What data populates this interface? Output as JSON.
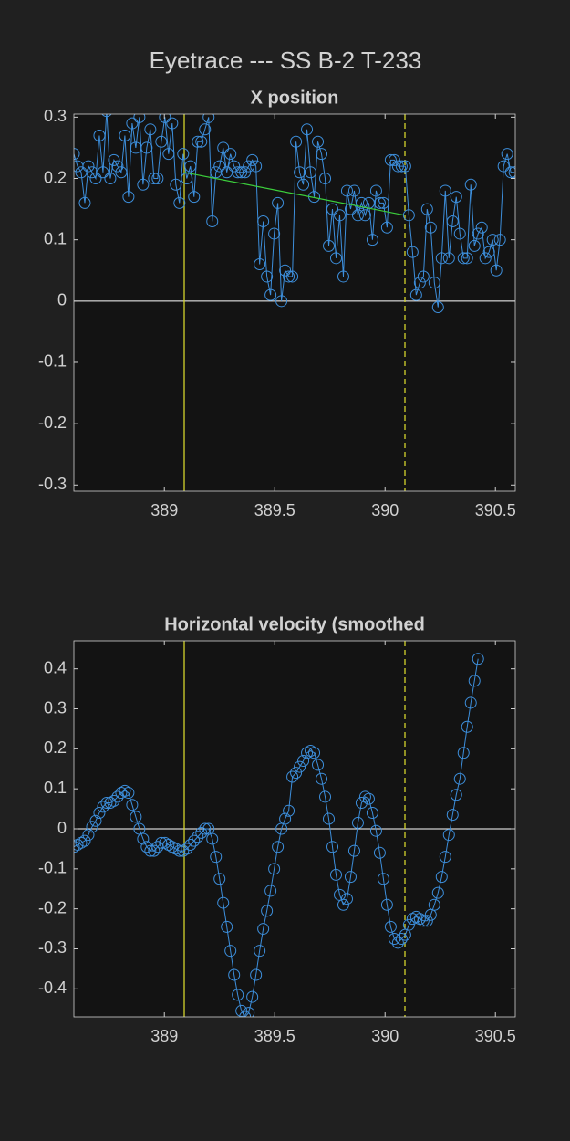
{
  "title": "Eyetrace --- SS B-2 T-233",
  "chart_data": [
    {
      "type": "line",
      "title": "X position",
      "x": [
        388.59,
        388.6065,
        388.623,
        388.6395,
        388.656,
        388.6725,
        388.689,
        388.7055,
        388.722,
        388.7385,
        388.755,
        388.7715,
        388.788,
        388.8045,
        388.821,
        388.8375,
        388.854,
        388.8705,
        388.887,
        388.9035,
        388.92,
        388.9365,
        388.953,
        388.9695,
        388.986,
        389.0025,
        389.019,
        389.0355,
        389.052,
        389.0685,
        389.085,
        389.1015,
        389.118,
        389.1345,
        389.151,
        389.1675,
        389.184,
        389.2005,
        389.217,
        389.2335,
        389.25,
        389.2665,
        389.283,
        389.2995,
        389.316,
        389.3325,
        389.349,
        389.3655,
        389.382,
        389.3985,
        389.415,
        389.4315,
        389.448,
        389.4645,
        389.481,
        389.4975,
        389.514,
        389.5305,
        389.547,
        389.5635,
        389.58,
        389.5965,
        389.613,
        389.6295,
        389.646,
        389.6625,
        389.679,
        389.6955,
        389.712,
        389.7285,
        389.745,
        389.7615,
        389.778,
        389.7945,
        389.811,
        389.8275,
        389.844,
        389.8605,
        389.877,
        389.8935,
        389.91,
        389.9265,
        389.943,
        389.9595,
        389.976,
        389.9925,
        390.009,
        390.0255,
        390.042,
        390.0585,
        390.075,
        390.0915,
        390.108,
        390.1245,
        390.141,
        390.1575,
        390.174,
        390.1905,
        390.207,
        390.2235,
        390.24,
        390.2565,
        390.273,
        390.2895,
        390.306,
        390.3225,
        390.339,
        390.3555,
        390.372,
        390.3885,
        390.405,
        390.4215,
        390.438,
        390.4545,
        390.471,
        390.4875,
        390.504,
        390.5205,
        390.537,
        390.5535,
        390.57,
        390.5865
      ],
      "series": [
        {
          "color": "#3d8fdc",
          "values": [
            0.24,
            0.22,
            0.21,
            0.16,
            0.22,
            0.21,
            0.2,
            0.27,
            0.21,
            0.31,
            0.2,
            0.23,
            0.22,
            0.21,
            0.27,
            0.17,
            0.29,
            0.25,
            0.3,
            0.19,
            0.25,
            0.28,
            0.2,
            0.2,
            0.26,
            0.3,
            0.24,
            0.29,
            0.19,
            0.16,
            0.24,
            0.2,
            0.22,
            0.17,
            0.26,
            0.26,
            0.28,
            0.3,
            0.13,
            0.21,
            0.22,
            0.25,
            0.21,
            0.24,
            0.22,
            0.21,
            0.21,
            0.21,
            0.22,
            0.23,
            0.22,
            0.06,
            0.13,
            0.04,
            0.01,
            0.11,
            0.16,
            0.0,
            0.05,
            0.04,
            0.04,
            0.26,
            0.21,
            0.19,
            0.28,
            0.21,
            0.17,
            0.26,
            0.24,
            0.2,
            0.09,
            0.15,
            0.07,
            0.14,
            0.04,
            0.18,
            0.15,
            0.18,
            0.14,
            0.16,
            0.14,
            0.16,
            0.1,
            0.18,
            0.16,
            0.16,
            0.12,
            0.23,
            0.23,
            0.22,
            0.22,
            0.22,
            0.14,
            0.08,
            0.01,
            0.03,
            0.04,
            0.15,
            0.12,
            0.03,
            -0.01,
            0.07,
            0.18,
            0.07,
            0.13,
            0.17,
            0.11,
            0.07,
            0.07,
            0.19,
            0.09,
            0.11,
            0.12,
            0.07,
            0.08,
            0.1,
            0.05,
            0.1,
            0.22,
            0.24,
            0.21,
            0.21
          ]
        }
      ],
      "fit_line": {
        "x": [
          389.09,
          390.09
        ],
        "values": [
          0.21,
          0.14
        ],
        "color": "#3ccf3c"
      },
      "vlines": [
        {
          "x": 389.09,
          "style": "solid"
        },
        {
          "x": 390.09,
          "style": "dashed"
        }
      ],
      "vline_color": "#d4d42c",
      "hlines": [
        0
      ],
      "xlim": [
        388.59,
        390.59
      ],
      "ylim": [
        -0.31,
        0.305
      ],
      "xticks": [
        389,
        389.5,
        390,
        390.5
      ],
      "yticks": [
        -0.3,
        -0.2,
        -0.1,
        0,
        0.1,
        0.2,
        0.3
      ]
    },
    {
      "type": "line",
      "title": "Horizontal velocity (smoothed",
      "x": [
        388.59,
        388.6065,
        388.623,
        388.6395,
        388.656,
        388.6725,
        388.689,
        388.7055,
        388.722,
        388.7385,
        388.755,
        388.7715,
        388.788,
        388.8045,
        388.821,
        388.8375,
        388.854,
        388.8705,
        388.887,
        388.9035,
        388.92,
        388.9365,
        388.953,
        388.9695,
        388.986,
        389.0025,
        389.019,
        389.0355,
        389.052,
        389.0685,
        389.085,
        389.1015,
        389.118,
        389.1345,
        389.151,
        389.1675,
        389.184,
        389.2005,
        389.217,
        389.2335,
        389.25,
        389.2665,
        389.283,
        389.2995,
        389.316,
        389.3325,
        389.349,
        389.3655,
        389.382,
        389.3985,
        389.415,
        389.4315,
        389.448,
        389.4645,
        389.481,
        389.4975,
        389.514,
        389.5305,
        389.547,
        389.5635,
        389.58,
        389.5965,
        389.613,
        389.6295,
        389.646,
        389.6625,
        389.679,
        389.6955,
        389.712,
        389.7285,
        389.745,
        389.7615,
        389.778,
        389.7945,
        389.811,
        389.8275,
        389.844,
        389.8605,
        389.877,
        389.8935,
        389.91,
        389.9265,
        389.943,
        389.9595,
        389.976,
        389.9925,
        390.009,
        390.0255,
        390.042,
        390.0585,
        390.075,
        390.0915,
        390.108,
        390.1245,
        390.141,
        390.1575,
        390.174,
        390.1905,
        390.207,
        390.2235,
        390.24,
        390.2565,
        390.273,
        390.2895,
        390.306,
        390.3225,
        390.339,
        390.3555,
        390.372,
        390.3885,
        390.405,
        390.4215
      ],
      "series": [
        {
          "color": "#3d8fdc",
          "values": [
            -0.045,
            -0.04,
            -0.035,
            -0.03,
            -0.015,
            0.005,
            0.02,
            0.04,
            0.055,
            0.065,
            0.065,
            0.07,
            0.08,
            0.09,
            0.095,
            0.09,
            0.06,
            0.03,
            0.0,
            -0.025,
            -0.045,
            -0.055,
            -0.055,
            -0.045,
            -0.035,
            -0.035,
            -0.04,
            -0.045,
            -0.05,
            -0.055,
            -0.055,
            -0.05,
            -0.04,
            -0.03,
            -0.02,
            -0.01,
            0.0,
            0.0,
            -0.025,
            -0.07,
            -0.125,
            -0.185,
            -0.245,
            -0.305,
            -0.365,
            -0.415,
            -0.455,
            -0.47,
            -0.46,
            -0.42,
            -0.365,
            -0.305,
            -0.25,
            -0.205,
            -0.155,
            -0.1,
            -0.045,
            0.0,
            0.025,
            0.045,
            0.13,
            0.14,
            0.155,
            0.17,
            0.19,
            0.195,
            0.19,
            0.16,
            0.125,
            0.08,
            0.025,
            -0.045,
            -0.115,
            -0.165,
            -0.19,
            -0.175,
            -0.12,
            -0.055,
            0.015,
            0.065,
            0.08,
            0.075,
            0.04,
            -0.005,
            -0.06,
            -0.125,
            -0.19,
            -0.245,
            -0.275,
            -0.285,
            -0.275,
            -0.265,
            -0.24,
            -0.225,
            -0.22,
            -0.225,
            -0.23,
            -0.23,
            -0.215,
            -0.19,
            -0.16,
            -0.12,
            -0.07,
            -0.015,
            0.035,
            0.085,
            0.125,
            0.19,
            0.255,
            0.315,
            0.37,
            0.425
          ]
        }
      ],
      "vlines": [
        {
          "x": 389.09,
          "style": "solid"
        },
        {
          "x": 390.09,
          "style": "dashed"
        }
      ],
      "vline_color": "#d4d42c",
      "hlines": [
        0
      ],
      "xlim": [
        388.59,
        390.59
      ],
      "ylim": [
        -0.47,
        0.47
      ],
      "xticks": [
        389,
        389.5,
        390,
        390.5
      ],
      "yticks": [
        -0.4,
        -0.3,
        -0.2,
        -0.1,
        0,
        0.1,
        0.2,
        0.3,
        0.4
      ]
    }
  ]
}
